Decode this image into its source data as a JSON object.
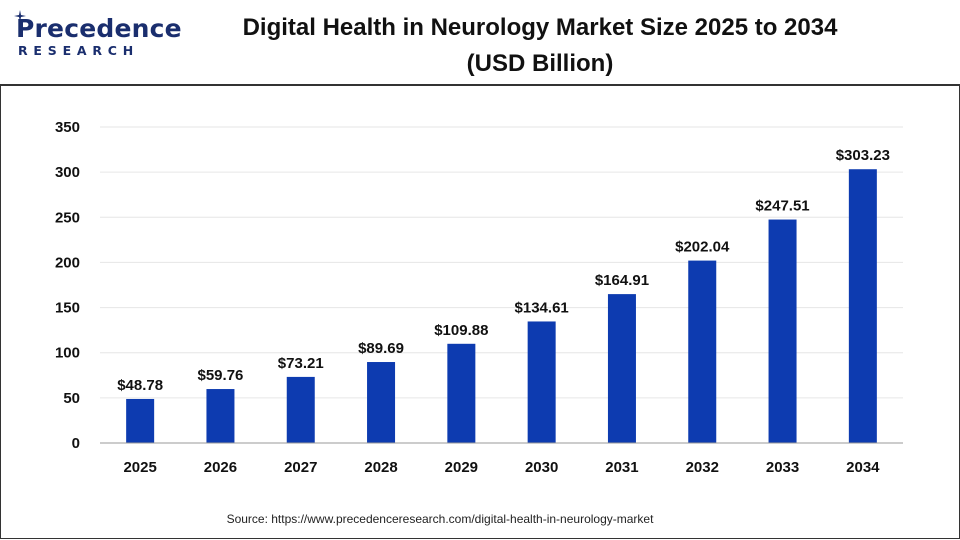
{
  "brand": {
    "logo_main": "Precedence",
    "logo_sub": "RESEARCH",
    "logo_color": "#1a2e6e"
  },
  "source": "Source: https://www.precedenceresearch.com/digital-health-in-neurology-market",
  "chart_data": {
    "type": "bar",
    "title": "Digital Health in Neurology Market Size 2025 to 2034",
    "subtitle": "(USD Billion)",
    "categories": [
      "2025",
      "2026",
      "2027",
      "2028",
      "2029",
      "2030",
      "2031",
      "2032",
      "2033",
      "2034"
    ],
    "values": [
      48.78,
      59.76,
      73.21,
      89.69,
      109.88,
      134.61,
      164.91,
      202.04,
      247.51,
      303.23
    ],
    "value_labels": [
      "$48.78",
      "$59.76",
      "$73.21",
      "$89.69",
      "$109.88",
      "$134.61",
      "$164.91",
      "$202.04",
      "$247.51",
      "$303.23"
    ],
    "xlabel": "",
    "ylabel": "",
    "ylim": [
      0,
      350
    ],
    "yticks": [
      "0",
      "50",
      "100",
      "150",
      "200",
      "250",
      "300",
      "350"
    ],
    "grid": true,
    "bar_color": "#0d3bb0",
    "grid_color": "#e6e6e6"
  }
}
